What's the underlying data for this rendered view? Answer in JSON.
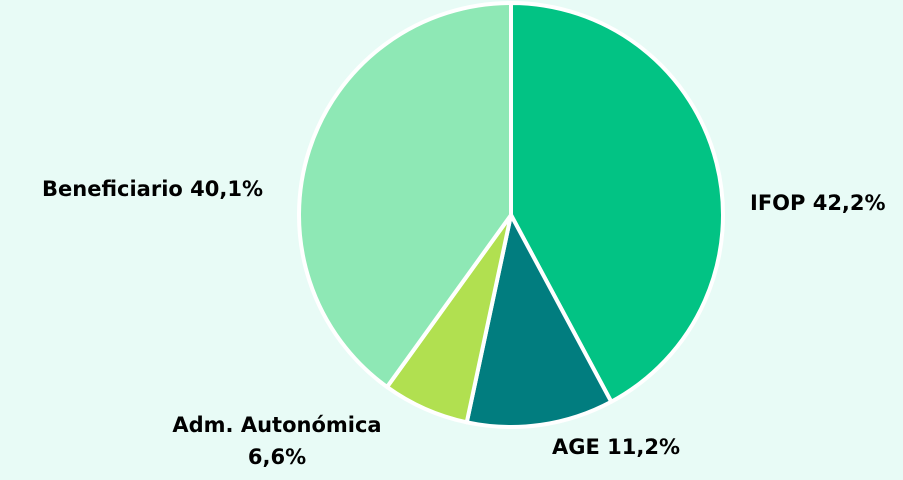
{
  "chart_data": {
    "type": "pie",
    "title": "",
    "slices": [
      {
        "label": "IFOP",
        "value": 42.2,
        "value_text": "42,2%",
        "color": "#02c384"
      },
      {
        "label": "AGE",
        "value": 11.2,
        "value_text": "11,2%",
        "color": "#017d7f"
      },
      {
        "label": "Adm. Autonómica",
        "value": 6.6,
        "value_text": "6,6%",
        "color": "#b1e050"
      },
      {
        "label": "Beneficiario",
        "value": 40.1,
        "value_text": "40,1%",
        "color": "#8ee8b5"
      }
    ],
    "start_angle": "12 o'clock",
    "direction": "clockwise",
    "slice_border_color": "#ffffff",
    "legend": "none",
    "background_color": "#e8fbf6"
  }
}
